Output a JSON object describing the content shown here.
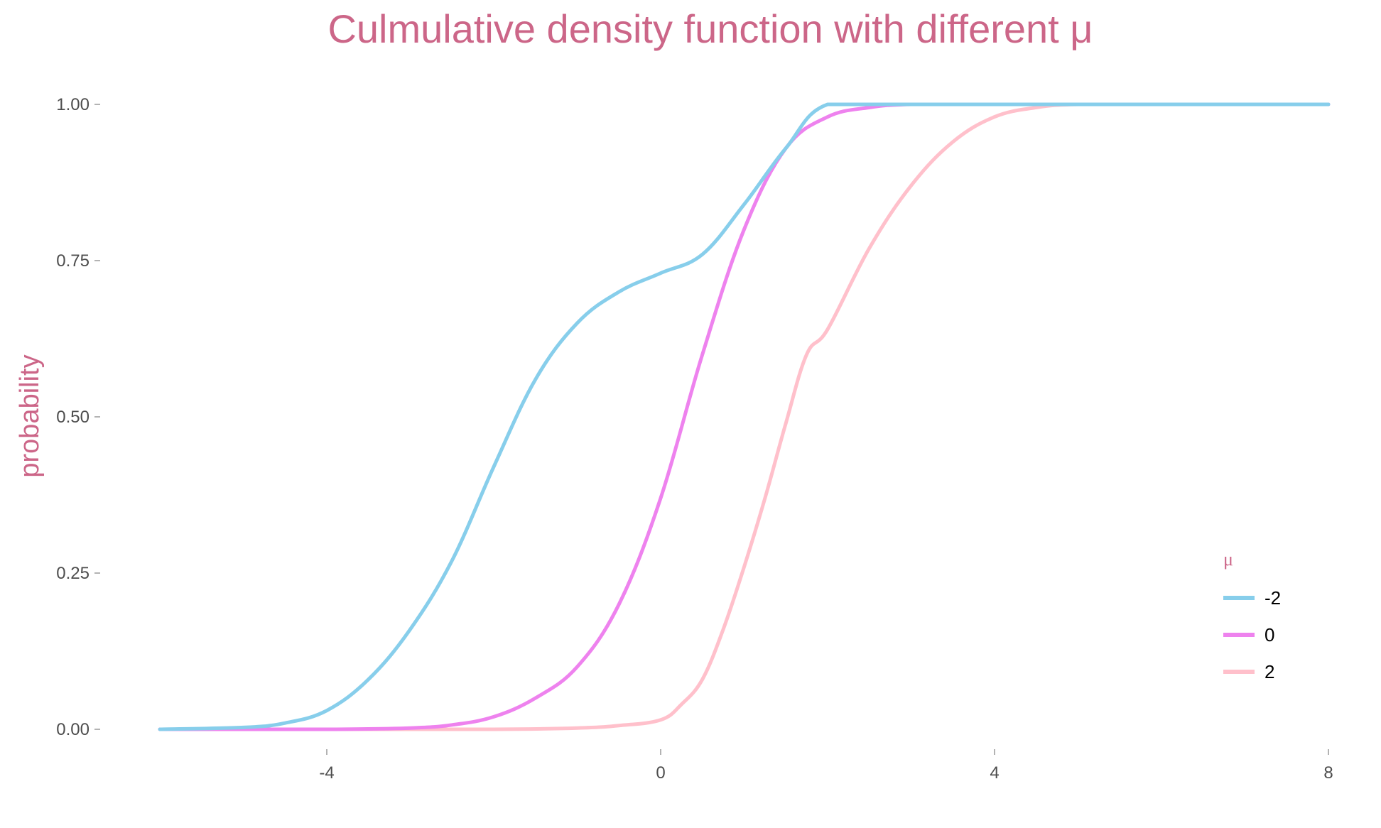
{
  "chart_data": {
    "type": "line",
    "title": "Culmulative density function with different μ",
    "xlabel": "",
    "ylabel": "probability",
    "xlim": [
      -6,
      8
    ],
    "ylim": [
      0,
      1
    ],
    "x_ticks": [
      -4,
      0,
      4,
      8
    ],
    "x_tick_labels": [
      "-4",
      "0",
      "4",
      "8"
    ],
    "y_ticks": [
      0,
      0.25,
      0.5,
      0.75,
      1
    ],
    "y_tick_labels": [
      "0.00",
      "0.25",
      "0.50",
      "0.75",
      "1.00"
    ],
    "grid": false,
    "legend": {
      "title": "μ",
      "placement": "right"
    },
    "series": [
      {
        "name": "-2",
        "color": "#87ceeb",
        "x": [
          -6,
          -5,
          -4.5,
          -4,
          -3.5,
          -3,
          -2.5,
          -2,
          -1.5,
          -1,
          -0.5,
          0,
          0.5,
          1,
          1.5,
          2,
          3,
          4,
          5,
          6,
          7,
          8
        ],
        "y": [
          0,
          0.003,
          0.01,
          0.03,
          0.08,
          0.16,
          0.27,
          0.42,
          0.56,
          0.65,
          0.7,
          0.73,
          0.76,
          0.84,
          0.93,
          1,
          1,
          1,
          1,
          1,
          1,
          1
        ]
      },
      {
        "name": "0",
        "color": "#ee82ee",
        "x": [
          -6,
          -4,
          -3,
          -2.5,
          -2,
          -1.5,
          -1,
          -0.5,
          0,
          0.5,
          1,
          1.5,
          2,
          2.5,
          3,
          4,
          5,
          6,
          7,
          8
        ],
        "y": [
          0,
          0,
          0.002,
          0.007,
          0.02,
          0.05,
          0.1,
          0.2,
          0.37,
          0.6,
          0.8,
          0.93,
          0.98,
          0.995,
          1,
          1,
          1,
          1,
          1,
          1
        ]
      },
      {
        "name": "2",
        "color": "#ffc0cb",
        "x": [
          -6,
          -4,
          -2,
          -1,
          -0.5,
          0,
          0.25,
          0.5,
          0.75,
          1,
          1.25,
          1.5,
          1.75,
          2,
          2.5,
          3,
          3.5,
          4,
          4.5,
          5,
          6,
          7,
          8
        ],
        "y": [
          0,
          0,
          0,
          0.002,
          0.006,
          0.015,
          0.04,
          0.08,
          0.16,
          0.26,
          0.37,
          0.49,
          0.6,
          0.64,
          0.77,
          0.87,
          0.94,
          0.98,
          0.995,
          1,
          1,
          1,
          1
        ]
      }
    ]
  }
}
